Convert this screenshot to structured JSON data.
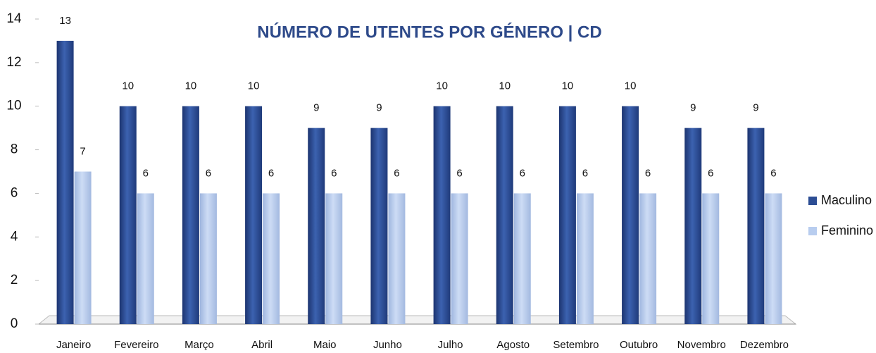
{
  "chart_data": {
    "type": "bar",
    "title": "NÚMERO  DE UTENTES POR GÉNERO | CD",
    "categories": [
      "Janeiro",
      "Fevereiro",
      "Março",
      "Abril",
      "Maio",
      "Junho",
      "Julho",
      "Agosto",
      "Setembro",
      "Outubro",
      "Novembro",
      "Dezembro"
    ],
    "series": [
      {
        "name": "Maculino",
        "color": "#2c4d94",
        "values": [
          13,
          10,
          10,
          10,
          9,
          9,
          10,
          10,
          10,
          10,
          9,
          9
        ]
      },
      {
        "name": "Feminino",
        "color": "#b8cdef",
        "values": [
          7,
          6,
          6,
          6,
          6,
          6,
          6,
          6,
          6,
          6,
          6,
          6
        ]
      }
    ],
    "ylim": [
      0,
      14
    ],
    "yticks": [
      0,
      2,
      4,
      6,
      8,
      10,
      12,
      14
    ],
    "legend": "right"
  }
}
